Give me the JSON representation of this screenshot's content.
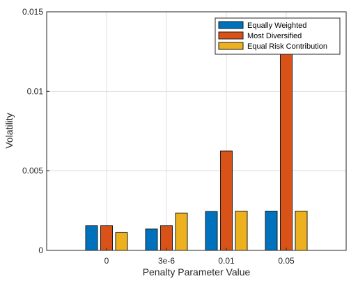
{
  "chart_data": {
    "type": "bar",
    "xlabel": "Penalty Parameter Value",
    "ylabel": "Volatility",
    "categories": [
      "0",
      "3e-6",
      "0.01",
      "0.05"
    ],
    "ylim": [
      0,
      0.015
    ],
    "yticks": [
      0,
      0.005,
      0.01,
      0.015
    ],
    "ytick_labels": [
      "0",
      "0.005",
      "0.01",
      "0.015"
    ],
    "grid": true,
    "legend_position": "top-right",
    "series": [
      {
        "name": "Equally Weighted",
        "color": "#0072BD",
        "values": [
          0.00155,
          0.00135,
          0.00245,
          0.00247
        ]
      },
      {
        "name": "Most Diversified",
        "color": "#D95319",
        "values": [
          0.00155,
          0.00155,
          0.00625,
          0.0139
        ]
      },
      {
        "name": "Equal Risk Contribution",
        "color": "#EDB120",
        "values": [
          0.00112,
          0.00235,
          0.00247,
          0.00247
        ]
      }
    ]
  }
}
